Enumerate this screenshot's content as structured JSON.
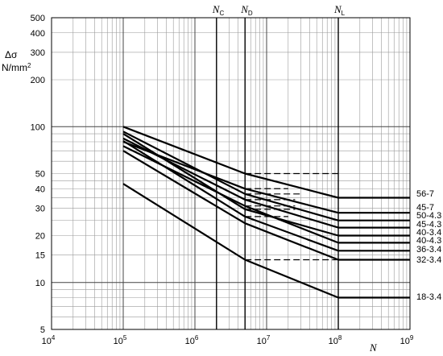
{
  "chart_data": {
    "type": "line",
    "x_scale": "log",
    "y_scale": "log",
    "xlim": [
      10000,
      1000000000
    ],
    "ylim": [
      5,
      500
    ],
    "grid": true,
    "xlabel": "N",
    "ylabel_line1": "Δσ",
    "ylabel_line2": "N/mm",
    "ylabel_sup": "2",
    "x_ticks": [
      {
        "value": 10000,
        "base": "10",
        "exp": "4"
      },
      {
        "value": 100000,
        "base": "10",
        "exp": "5"
      },
      {
        "value": 1000000,
        "base": "10",
        "exp": "6"
      },
      {
        "value": 10000000,
        "base": "10",
        "exp": "7"
      },
      {
        "value": 100000000,
        "base": "10",
        "exp": "8"
      },
      {
        "value": 1000000000,
        "base": "10",
        "exp": "9"
      }
    ],
    "y_ticks": [
      {
        "value": 5,
        "label": "5"
      },
      {
        "value": 10,
        "label": "10"
      },
      {
        "value": 15,
        "label": "15"
      },
      {
        "value": 20,
        "label": "20"
      },
      {
        "value": 30,
        "label": "30"
      },
      {
        "value": 40,
        "label": "40"
      },
      {
        "value": 50,
        "label": "50"
      },
      {
        "value": 100,
        "label": "100"
      },
      {
        "value": 200,
        "label": "200"
      },
      {
        "value": 300,
        "label": "300"
      },
      {
        "value": 400,
        "label": "400"
      },
      {
        "value": 500,
        "label": "500"
      }
    ],
    "vertical_markers": [
      {
        "base": "N",
        "sub": "C",
        "x": 2000000
      },
      {
        "base": "N",
        "sub": "D",
        "x": 5000000
      },
      {
        "base": "N",
        "sub": "L",
        "x": 100000000
      }
    ],
    "series": [
      {
        "name": "56-7",
        "x": [
          100000,
          5000000,
          100000000,
          1000000000
        ],
        "y": [
          100,
          50,
          35,
          35
        ],
        "dashed": {
          "x": [
            5000000,
            100000000
          ],
          "y": [
            50,
            50
          ]
        }
      },
      {
        "name": "45-7",
        "x": [
          100000,
          5000000,
          100000000,
          1000000000
        ],
        "y": [
          80,
          40,
          28,
          28
        ],
        "dashed": {
          "x": [
            5000000,
            20000000
          ],
          "y": [
            40,
            40
          ]
        }
      },
      {
        "name": "50-4.3",
        "x": [
          100000,
          5000000,
          100000000,
          1000000000
        ],
        "y": [
          93,
          37,
          25,
          25
        ],
        "dashed": {
          "x": [
            5000000,
            30000000
          ],
          "y": [
            37,
            37
          ]
        }
      },
      {
        "name": "45-4.3",
        "x": [
          100000,
          5000000,
          100000000,
          1000000000
        ],
        "y": [
          84,
          34,
          22.5,
          22.5
        ],
        "dashed": {
          "x": [
            5000000,
            25000000
          ],
          "y": [
            34,
            34
          ]
        }
      },
      {
        "name": "40-3.4",
        "x": [
          100000,
          5000000,
          100000000,
          1000000000
        ],
        "y": [
          90,
          29.5,
          20,
          20
        ],
        "dashed": {
          "x": [
            5000000,
            25000000
          ],
          "y": [
            29.5,
            29.5
          ]
        }
      },
      {
        "name": "40-4.3",
        "x": [
          100000,
          5000000,
          100000000,
          1000000000
        ],
        "y": [
          75,
          31,
          18,
          18
        ],
        "dashed": {
          "x": [
            5000000,
            25000000
          ],
          "y": [
            31,
            31
          ]
        }
      },
      {
        "name": "36-3.4",
        "x": [
          100000,
          5000000,
          100000000,
          1000000000
        ],
        "y": [
          81,
          26.5,
          16,
          16
        ],
        "dashed": {
          "x": [
            5000000,
            20000000
          ],
          "y": [
            26.5,
            26.5
          ]
        }
      },
      {
        "name": "32-3.4",
        "x": [
          100000,
          5000000,
          100000000,
          1000000000
        ],
        "y": [
          70,
          24,
          14,
          14
        ],
        "dashed": {
          "x": [
            5000000,
            100000000
          ],
          "y": [
            14,
            14
          ]
        }
      },
      {
        "name": "18-3.4",
        "x": [
          100000,
          5000000,
          100000000,
          1000000000
        ],
        "y": [
          43,
          14,
          8,
          8
        ]
      }
    ]
  }
}
